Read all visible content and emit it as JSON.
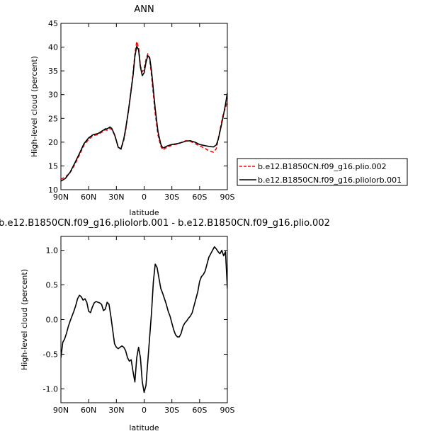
{
  "chart_data": [
    {
      "type": "line",
      "title": "ANN",
      "xlabel": "latitude",
      "ylabel": "High-level cloud (percent)",
      "xlim": [
        90,
        -90
      ],
      "ylim": [
        10,
        45
      ],
      "x_ticks": [
        90,
        60,
        30,
        0,
        -30,
        -60,
        -90
      ],
      "x_tick_labels": [
        "90N",
        "60N",
        "30N",
        "0",
        "30S",
        "60S",
        "90S"
      ],
      "y_ticks": [
        10,
        15,
        20,
        25,
        30,
        35,
        40,
        45
      ],
      "y_tick_labels": [
        "10",
        "15",
        "20",
        "25",
        "30",
        "35",
        "40",
        "45"
      ],
      "legend_position": "right",
      "series": [
        {
          "name": "b.e12.B1850CN.f09_g16.plio.002",
          "color": "#ff0000",
          "dash": "dashed",
          "x": [
            90,
            85,
            80,
            75,
            70,
            65,
            60,
            55,
            50,
            45,
            42,
            40,
            37,
            35,
            32,
            30,
            28,
            25,
            22,
            20,
            17,
            15,
            12,
            10,
            8,
            6,
            4,
            2,
            0,
            -2,
            -4,
            -6,
            -8,
            -10,
            -12,
            -15,
            -18,
            -20,
            -22,
            -25,
            -28,
            -30,
            -33,
            -36,
            -40,
            -45,
            -50,
            -55,
            -60,
            -65,
            -70,
            -75,
            -78,
            -80,
            -82,
            -84,
            -86,
            -88,
            -90
          ],
          "y": [
            12.2,
            12.7,
            13.6,
            15.3,
            17.3,
            19.4,
            20.6,
            21.4,
            21.6,
            22.2,
            22.6,
            22.5,
            22.9,
            22.7,
            21.5,
            20.3,
            19.0,
            18.5,
            20.4,
            22.5,
            26.5,
            29.5,
            34.5,
            38.5,
            41.2,
            39.8,
            36.0,
            34.8,
            35.5,
            37.4,
            38.6,
            37.5,
            34.0,
            30.0,
            26.0,
            21.5,
            19.2,
            18.4,
            18.6,
            19.0,
            19.2,
            19.4,
            19.5,
            19.6,
            19.9,
            20.3,
            20.2,
            19.7,
            19.2,
            18.8,
            18.2,
            17.9,
            18.6,
            20.5,
            22.5,
            24.5,
            26.2,
            27.2,
            28.7
          ]
        },
        {
          "name": "b.e12.B1850CN.f09_g16.pliolorb.001",
          "color": "#000000",
          "dash": "solid",
          "x": [
            90,
            85,
            80,
            75,
            70,
            65,
            60,
            55,
            50,
            45,
            42,
            40,
            37,
            35,
            32,
            30,
            28,
            25,
            22,
            20,
            17,
            15,
            12,
            10,
            8,
            6,
            4,
            2,
            0,
            -2,
            -4,
            -6,
            -8,
            -10,
            -12,
            -15,
            -18,
            -20,
            -22,
            -25,
            -28,
            -30,
            -33,
            -36,
            -40,
            -45,
            -50,
            -55,
            -60,
            -65,
            -70,
            -75,
            -78,
            -80,
            -82,
            -84,
            -86,
            -88,
            -90
          ],
          "y": [
            11.8,
            12.4,
            13.7,
            15.6,
            17.6,
            19.7,
            20.9,
            21.6,
            21.8,
            22.4,
            22.8,
            22.8,
            23.2,
            22.9,
            21.6,
            20.3,
            18.9,
            18.6,
            20.7,
            22.8,
            26.6,
            29.5,
            34.0,
            38.0,
            40.2,
            39.4,
            35.8,
            34.0,
            34.6,
            36.8,
            38.2,
            37.8,
            35.0,
            31.0,
            27.0,
            22.2,
            19.6,
            18.8,
            18.9,
            19.2,
            19.4,
            19.5,
            19.6,
            19.7,
            19.9,
            20.2,
            20.3,
            20.0,
            19.5,
            19.3,
            19.1,
            19.0,
            19.4,
            20.5,
            22.2,
            24.0,
            25.9,
            28.0,
            30.4
          ]
        }
      ]
    },
    {
      "type": "line",
      "title": "b.e12.B1850CN.f09_g16.pliolorb.001 - b.e12.B1850CN.f09_g16.plio.002",
      "xlabel": "latitude",
      "ylabel": "High-level cloud (percent)",
      "xlim": [
        90,
        -90
      ],
      "ylim": [
        -1.2,
        1.2
      ],
      "x_ticks": [
        90,
        60,
        30,
        0,
        -30,
        -60,
        -90
      ],
      "x_tick_labels": [
        "90N",
        "60N",
        "30N",
        "0",
        "30S",
        "60S",
        "90S"
      ],
      "y_ticks": [
        -1.0,
        -0.5,
        0.0,
        0.5,
        1.0
      ],
      "y_tick_labels": [
        "-1.0",
        "-0.5",
        "0.0",
        "0.5",
        "1.0"
      ],
      "series": [
        {
          "color": "#000000",
          "dash": "solid",
          "x": [
            90,
            88,
            86,
            84,
            82,
            80,
            78,
            76,
            74,
            72,
            70,
            68,
            66,
            64,
            62,
            60,
            58,
            56,
            54,
            52,
            50,
            48,
            46,
            44,
            42,
            40,
            38,
            36,
            34,
            32,
            30,
            28,
            26,
            24,
            22,
            20,
            18,
            16,
            14,
            12,
            10,
            8,
            6,
            4,
            2,
            0,
            -2,
            -4,
            -6,
            -8,
            -10,
            -12,
            -14,
            -16,
            -18,
            -20,
            -22,
            -24,
            -26,
            -28,
            -30,
            -32,
            -34,
            -36,
            -38,
            -40,
            -42,
            -44,
            -46,
            -48,
            -50,
            -52,
            -54,
            -56,
            -58,
            -60,
            -62,
            -64,
            -66,
            -68,
            -70,
            -72,
            -74,
            -76,
            -78,
            -80,
            -82,
            -84,
            -86,
            -88,
            -90
          ],
          "y": [
            -0.55,
            -0.33,
            -0.28,
            -0.2,
            -0.1,
            -0.02,
            0.05,
            0.12,
            0.2,
            0.3,
            0.35,
            0.33,
            0.28,
            0.3,
            0.25,
            0.12,
            0.1,
            0.18,
            0.24,
            0.26,
            0.25,
            0.24,
            0.22,
            0.13,
            0.15,
            0.25,
            0.22,
            0.05,
            -0.15,
            -0.35,
            -0.4,
            -0.42,
            -0.4,
            -0.38,
            -0.4,
            -0.45,
            -0.55,
            -0.6,
            -0.58,
            -0.75,
            -0.9,
            -0.55,
            -0.4,
            -0.55,
            -0.9,
            -1.05,
            -0.95,
            -0.6,
            -0.25,
            0.1,
            0.55,
            0.8,
            0.75,
            0.6,
            0.45,
            0.38,
            0.3,
            0.22,
            0.12,
            0.05,
            -0.05,
            -0.15,
            -0.22,
            -0.25,
            -0.25,
            -0.2,
            -0.1,
            -0.05,
            -0.02,
            0.02,
            0.05,
            0.1,
            0.2,
            0.3,
            0.4,
            0.55,
            0.62,
            0.65,
            0.7,
            0.8,
            0.9,
            0.95,
            1.0,
            1.05,
            1.02,
            0.98,
            0.95,
            1.0,
            0.92,
            0.98,
            0.45
          ]
        }
      ]
    }
  ]
}
